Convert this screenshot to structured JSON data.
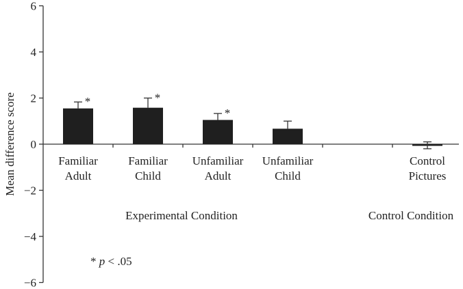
{
  "chart_data": {
    "type": "bar",
    "ylabel": "Mean difference score",
    "ylim": [
      -6,
      6
    ],
    "yticks": [
      6,
      4,
      2,
      0,
      -2,
      -4,
      -6
    ],
    "ytick_labels": [
      "6",
      "4",
      "2",
      "0",
      "−2",
      "−4",
      "−6"
    ],
    "categories": [
      {
        "line1": "Familiar",
        "line2": "Adult",
        "value": 1.55,
        "error": 0.28,
        "significant": true,
        "group": "Experimental Condition"
      },
      {
        "line1": "Familiar",
        "line2": "Child",
        "value": 1.58,
        "error": 0.42,
        "significant": true,
        "group": "Experimental Condition"
      },
      {
        "line1": "Unfamiliar",
        "line2": "Adult",
        "value": 1.05,
        "error": 0.28,
        "significant": true,
        "group": "Experimental Condition"
      },
      {
        "line1": "Unfamiliar",
        "line2": "Child",
        "value": 0.67,
        "error": 0.33,
        "significant": false,
        "group": "Experimental Condition"
      },
      {
        "line1": "",
        "line2": "",
        "value": null,
        "error": null,
        "significant": false,
        "group": ""
      },
      {
        "line1": "Control",
        "line2": "Pictures",
        "value": -0.05,
        "error": 0.15,
        "significant": false,
        "group": "Control Condition"
      }
    ],
    "groups": [
      "Experimental Condition",
      "Control Condition"
    ],
    "significance_marker": "*",
    "note_prefix": "* ",
    "note_italic": "p",
    "note_suffix": " < .05",
    "bar_color": "#1f1f1f",
    "grid": false,
    "legend": "none"
  }
}
